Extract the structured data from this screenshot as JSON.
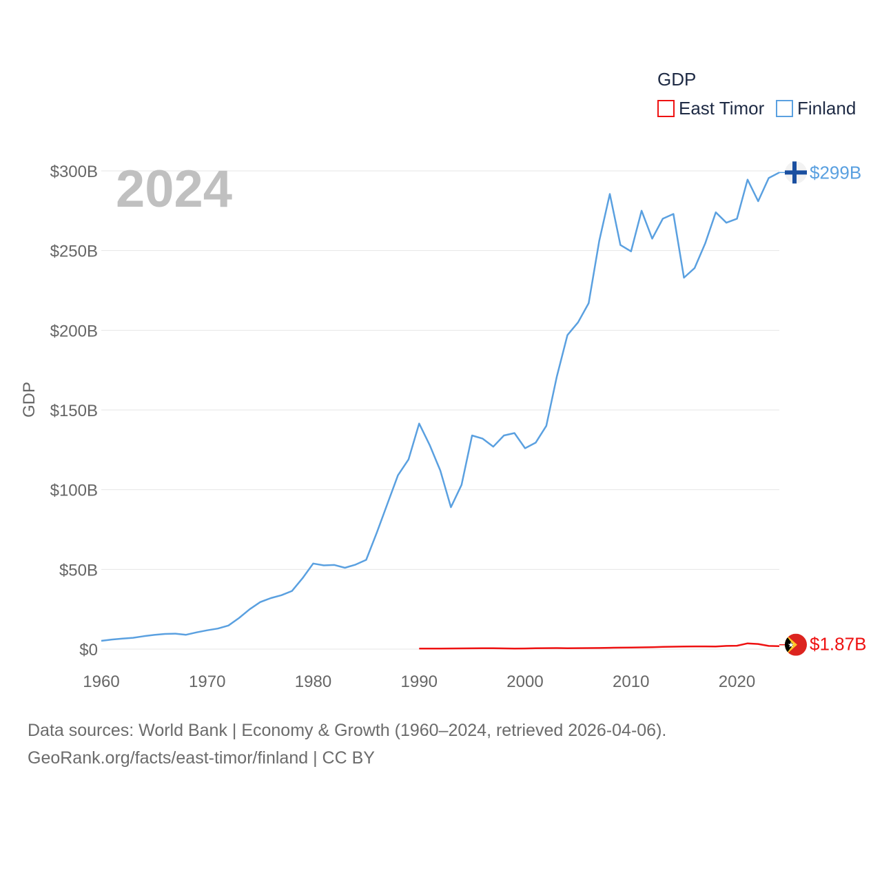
{
  "chart_data": {
    "type": "line",
    "title": "GDP",
    "ylabel": "GDP",
    "xlabel": "",
    "year_label": "2024",
    "xlim": [
      1960,
      2024
    ],
    "ylim": [
      0,
      300
    ],
    "y_unit": "billion USD",
    "x_ticks": [
      1960,
      1970,
      1980,
      1990,
      2000,
      2010,
      2020
    ],
    "y_ticks": [
      {
        "value": 0,
        "label": "$0"
      },
      {
        "value": 50,
        "label": "$50B"
      },
      {
        "value": 100,
        "label": "$100B"
      },
      {
        "value": 150,
        "label": "$150B"
      },
      {
        "value": 200,
        "label": "$200B"
      },
      {
        "value": 250,
        "label": "$250B"
      },
      {
        "value": 300,
        "label": "$300B"
      }
    ],
    "legend_title": "GDP",
    "series": [
      {
        "name": "East Timor",
        "color": "#ee1111",
        "flag": "east-timor-flag",
        "end_label": "$1.87B",
        "end_value": 1.87,
        "x": [
          1990,
          1991,
          1992,
          1993,
          1994,
          1995,
          1996,
          1997,
          1998,
          1999,
          2000,
          2001,
          2002,
          2003,
          2004,
          2005,
          2006,
          2007,
          2008,
          2009,
          2010,
          2011,
          2012,
          2013,
          2014,
          2015,
          2016,
          2017,
          2018,
          2019,
          2020,
          2021,
          2022,
          2023,
          2024
        ],
        "values": [
          0.3,
          0.32,
          0.35,
          0.38,
          0.42,
          0.47,
          0.5,
          0.52,
          0.45,
          0.3,
          0.4,
          0.55,
          0.6,
          0.65,
          0.55,
          0.6,
          0.65,
          0.7,
          0.8,
          0.9,
          1.0,
          1.1,
          1.2,
          1.4,
          1.5,
          1.6,
          1.7,
          1.7,
          1.6,
          2.0,
          2.1,
          3.6,
          3.2,
          2.0,
          1.87
        ]
      },
      {
        "name": "Finland",
        "color": "#5aa0e0",
        "flag": "finland-flag",
        "end_label": "$299B",
        "end_value": 299,
        "x": [
          1960,
          1961,
          1962,
          1963,
          1964,
          1965,
          1966,
          1967,
          1968,
          1969,
          1970,
          1971,
          1972,
          1973,
          1974,
          1975,
          1976,
          1977,
          1978,
          1979,
          1980,
          1981,
          1982,
          1983,
          1984,
          1985,
          1986,
          1987,
          1988,
          1989,
          1990,
          1991,
          1992,
          1993,
          1994,
          1995,
          1996,
          1997,
          1998,
          1999,
          2000,
          2001,
          2002,
          2003,
          2004,
          2005,
          2006,
          2007,
          2008,
          2009,
          2010,
          2011,
          2012,
          2013,
          2014,
          2015,
          2016,
          2017,
          2018,
          2019,
          2020,
          2021,
          2022,
          2023,
          2024
        ],
        "values": [
          5.2,
          6.0,
          6.6,
          7.1,
          8.1,
          8.9,
          9.5,
          9.7,
          9.0,
          10.5,
          11.8,
          12.9,
          14.8,
          19.5,
          25.0,
          29.5,
          32.0,
          33.8,
          36.5,
          44.5,
          53.7,
          52.5,
          52.8,
          51.0,
          53.0,
          56.0,
          73.0,
          91.0,
          109.0,
          119.0,
          141.5,
          128.0,
          112.0,
          89.0,
          103.0,
          134.0,
          132.0,
          127.0,
          134.0,
          135.5,
          126.0,
          129.5,
          140.0,
          171.0,
          197.0,
          205.0,
          217.0,
          256.0,
          285.5,
          253.5,
          249.5,
          275.0,
          257.5,
          270.0,
          273.0,
          233.0,
          239.0,
          254.5,
          274.0,
          267.5,
          270.0,
          294.5,
          281.0,
          295.5,
          299.0
        ]
      }
    ]
  },
  "footer": {
    "line1": "Data sources: World Bank | Economy & Growth (1960–2024, retrieved 2026-04-06).",
    "line2": "GeoRank.org/facts/east-timor/finland | CC BY"
  }
}
